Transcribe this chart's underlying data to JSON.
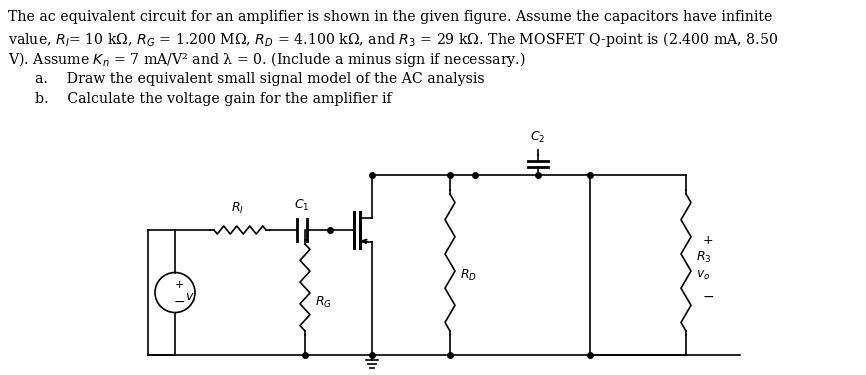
{
  "text_line1": "The ac equivalent circuit for an amplifier is shown in the given figure. Assume the capacitors have infinite",
  "text_line2": "value, $R_I$= 10 kΩ, $R_G$ = 1.200 MΩ, $R_D$ = 4.100 kΩ, and $R_3$ = 29 kΩ. The MOSFET Q-point is (2.400 mA, 8.50",
  "text_line3": "V). Assume $K_n$ = 7 mA/V² and λ = 0. (Include a minus sign if necessary.)",
  "text_a": "a.  Draw the equivalent small signal model of the AC analysis",
  "text_b": "b.  Calculate the voltage gain for the amplifier if",
  "bg": "#ffffff",
  "lc": "#000000"
}
